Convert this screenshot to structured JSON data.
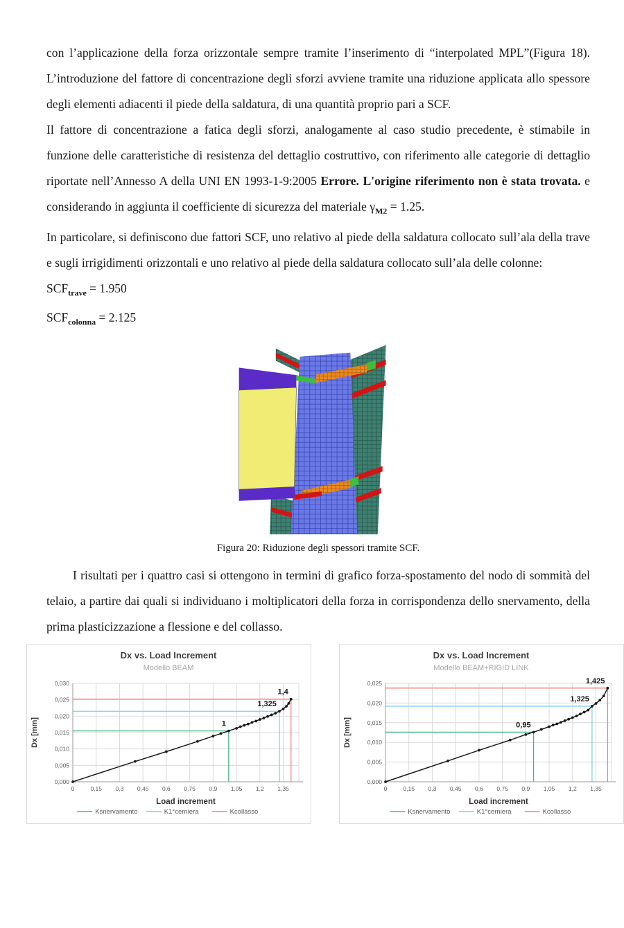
{
  "page": {
    "background": "#ffffff"
  },
  "doc": {
    "para1": "con l’applicazione della forza orizzontale sempre tramite l’inserimento di “interpolated MPL”(Figura 18). L’introduzione del fattore di concentrazione degli sforzi avviene tramite una riduzione applicata allo spessore degli elementi adiacenti il piede della saldatura, di una quantità proprio pari a SCF.",
    "para2_a": "Il fattore di concentrazione a fatica degli sforzi, analogamente al caso studio precedente, è stimabile in funzione delle caratteristiche di resistenza del dettaglio costruttivo, con riferimento alle categorie di dettaglio riportate nell’Annesso A della UNI EN 1993-1-9:2005 ",
    "para2_bold": "Errore. L'origine riferimento non è stata trovata.",
    "para2_b": " e considerando in aggiunta il coefficiente di sicurezza del materiale ",
    "gamma": "γ",
    "gamma_sub": "M2",
    "para2_c": " = 1.25.",
    "para3": "In particolare, si definiscono due fattori SCF, uno relativo al piede della saldatura collocato sull’ala della trave e sugli irrigidimenti orizzontali e uno relativo al piede della saldatura collocato sull’ala delle colonne:",
    "scf_base": "SCF",
    "scf1_sub": "trave",
    "scf1_val": " = 1.950",
    "scf2_sub": "colonna",
    "scf2_val": " = 2.125",
    "para4": "I risultati per i quattro casi si ottengono in termini di grafico forza-spostamento del nodo di sommità del telaio, a partire dai quali si individuano i moltiplicatori della forza in corrispondenza dello snervamento, della prima plasticizzazione a flessione e del collasso."
  },
  "figure": {
    "caption": "Figura 20: Riduzione degli spessori tramite SCF.",
    "palette": {
      "yellow": "#F1EC73",
      "purple": "#5B2BC8",
      "blue": "#6B79E6",
      "blue_line": "#3947B8",
      "teal": "#3E8071",
      "teal_line": "#27584C",
      "orange": "#EC8A21",
      "orange_line": "#A85E0E",
      "red": "#D31414",
      "green": "#3DBE3D"
    }
  },
  "colors": {
    "snervamento": "#3FB983",
    "cerniera": "#7FD0EA",
    "collasso": "#F2837B",
    "grid": "#D9D9D9",
    "axis": "#9A9A9A",
    "tick": "#595959",
    "title": "#404040",
    "subtitle": "#A6A6A6",
    "curve": "#1A1A1A"
  },
  "chart_data": [
    {
      "id": "beam",
      "type": "line",
      "title": "Dx vs. Load Increment",
      "subtitle": "Modello BEAM",
      "xlabel": "Load increment",
      "ylabel": "Dx [mm]",
      "xlim": [
        0,
        1.45
      ],
      "ylim": [
        0,
        0.03
      ],
      "xticks": [
        {
          "v": 0,
          "label": "0"
        },
        {
          "v": 0.15,
          "label": "0,15"
        },
        {
          "v": 0.3,
          "label": "0,3"
        },
        {
          "v": 0.45,
          "label": "0,45"
        },
        {
          "v": 0.6,
          "label": "0,6"
        },
        {
          "v": 0.75,
          "label": "0,75"
        },
        {
          "v": 0.9,
          "label": "0,9"
        },
        {
          "v": 1.05,
          "label": "1,05"
        },
        {
          "v": 1.2,
          "label": "1,2"
        },
        {
          "v": 1.35,
          "label": "1,35"
        }
      ],
      "yticks": [
        {
          "v": 0,
          "label": "0,000"
        },
        {
          "v": 0.005,
          "label": "0,005"
        },
        {
          "v": 0.01,
          "label": "0,010"
        },
        {
          "v": 0.015,
          "label": "0,015"
        },
        {
          "v": 0.02,
          "label": "0,020"
        },
        {
          "v": 0.025,
          "label": "0,025"
        },
        {
          "v": 0.03,
          "label": "0,030"
        }
      ],
      "series": [
        {
          "name": "Dx",
          "points": [
            [
              0,
              0
            ],
            [
              0.4,
              0.0062
            ],
            [
              0.6,
              0.0092
            ],
            [
              0.8,
              0.0123
            ],
            [
              0.9,
              0.0139
            ],
            [
              0.95,
              0.0147
            ],
            [
              1.0,
              0.0155
            ],
            [
              1.05,
              0.0163
            ],
            [
              1.075,
              0.0168
            ],
            [
              1.1,
              0.0172
            ],
            [
              1.125,
              0.0176
            ],
            [
              1.15,
              0.0181
            ],
            [
              1.175,
              0.0185
            ],
            [
              1.2,
              0.019
            ],
            [
              1.225,
              0.0194
            ],
            [
              1.25,
              0.0199
            ],
            [
              1.275,
              0.0204
            ],
            [
              1.3,
              0.0209
            ],
            [
              1.325,
              0.0215
            ],
            [
              1.35,
              0.0222
            ],
            [
              1.37,
              0.023
            ],
            [
              1.385,
              0.0239
            ],
            [
              1.4,
              0.0252
            ]
          ]
        }
      ],
      "references": [
        {
          "name": "Ksnervamento",
          "color": "snervamento",
          "x": 1.0,
          "y": 0.0155,
          "label": "1"
        },
        {
          "name": "K1°cerniera",
          "color": "cerniera",
          "x": 1.325,
          "y": 0.0215,
          "label": "1,325"
        },
        {
          "name": "Kcollasso",
          "color": "collasso",
          "x": 1.4,
          "y": 0.0252,
          "label": "1,4"
        }
      ],
      "legend": [
        {
          "label": "Ksnervamento",
          "color": "snervamento"
        },
        {
          "label": "K1°cerniera",
          "color": "cerniera"
        },
        {
          "label": "Kcollasso",
          "color": "collasso"
        }
      ]
    },
    {
      "id": "beam-rigid-link",
      "type": "line",
      "title": "Dx vs. Load Increment",
      "subtitle": "Modello BEAM+RIGID LINK",
      "xlabel": "Load increment",
      "ylabel": "Dx [mm]",
      "xlim": [
        0,
        1.45
      ],
      "ylim": [
        0,
        0.025
      ],
      "xticks": [
        {
          "v": 0,
          "label": "0"
        },
        {
          "v": 0.15,
          "label": "0,15"
        },
        {
          "v": 0.3,
          "label": "0,3"
        },
        {
          "v": 0.45,
          "label": "0,45"
        },
        {
          "v": 0.6,
          "label": "0,6"
        },
        {
          "v": 0.75,
          "label": "0,75"
        },
        {
          "v": 0.9,
          "label": "0,9"
        },
        {
          "v": 1.05,
          "label": "1,05"
        },
        {
          "v": 1.2,
          "label": "1,2"
        },
        {
          "v": 1.35,
          "label": "1,35"
        }
      ],
      "yticks": [
        {
          "v": 0,
          "label": "0,000"
        },
        {
          "v": 0.005,
          "label": "0,005"
        },
        {
          "v": 0.01,
          "label": "0,010"
        },
        {
          "v": 0.015,
          "label": "0,015"
        },
        {
          "v": 0.02,
          "label": "0,020"
        },
        {
          "v": 0.025,
          "label": "0,025"
        }
      ],
      "series": [
        {
          "name": "Dx",
          "points": [
            [
              0,
              0
            ],
            [
              0.4,
              0.0053
            ],
            [
              0.6,
              0.008
            ],
            [
              0.8,
              0.0106
            ],
            [
              0.9,
              0.012
            ],
            [
              0.95,
              0.0126
            ],
            [
              1.0,
              0.0133
            ],
            [
              1.05,
              0.014
            ],
            [
              1.075,
              0.0144
            ],
            [
              1.1,
              0.0147
            ],
            [
              1.125,
              0.0151
            ],
            [
              1.15,
              0.0155
            ],
            [
              1.175,
              0.0159
            ],
            [
              1.2,
              0.0163
            ],
            [
              1.225,
              0.0167
            ],
            [
              1.25,
              0.0172
            ],
            [
              1.275,
              0.0177
            ],
            [
              1.3,
              0.0182
            ],
            [
              1.325,
              0.0192
            ],
            [
              1.35,
              0.0199
            ],
            [
              1.375,
              0.0207
            ],
            [
              1.4,
              0.0218
            ],
            [
              1.425,
              0.0238
            ]
          ]
        }
      ],
      "references": [
        {
          "name": "Ksnervamento",
          "color": "snervamento",
          "x": 0.95,
          "y": 0.0126,
          "label": "0,95"
        },
        {
          "name": "K1°cerniera",
          "color": "cerniera",
          "x": 1.325,
          "y": 0.0192,
          "label": "1,325"
        },
        {
          "name": "Kcollasso",
          "color": "collasso",
          "x": 1.425,
          "y": 0.0238,
          "label": "1,425"
        }
      ],
      "legend": [
        {
          "label": "Ksnervamento",
          "color": "snervamento"
        },
        {
          "label": "K1°cerniera",
          "color": "cerniera"
        },
        {
          "label": "Kcollasso",
          "color": "collasso"
        }
      ]
    }
  ]
}
